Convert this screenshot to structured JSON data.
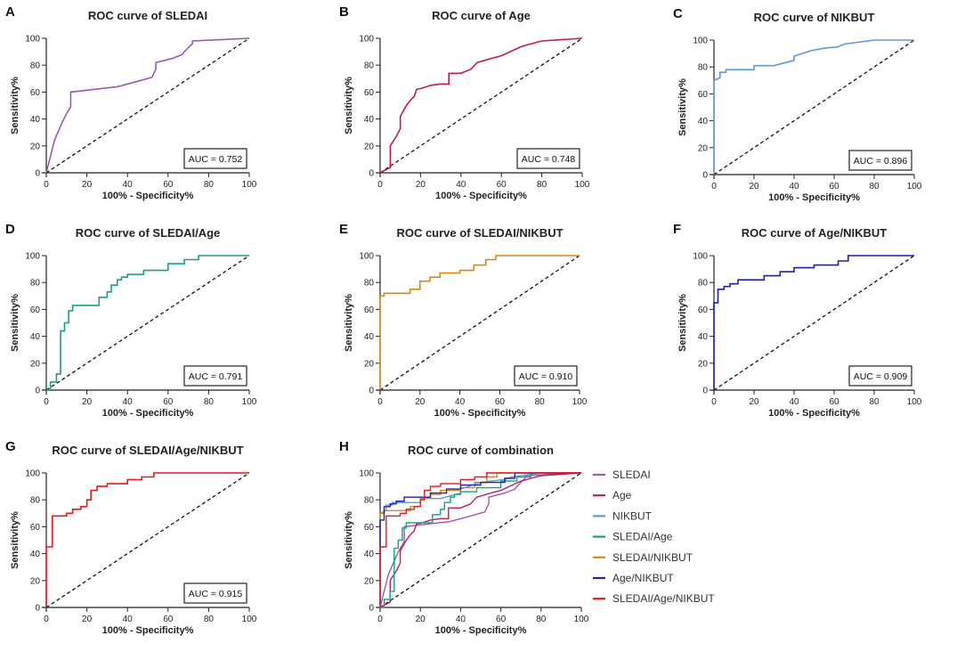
{
  "chart_data": [
    {
      "type": "line",
      "panel": "A",
      "title": "ROC curve of SLEDAI",
      "xlabel": "100% - Specificity%",
      "ylabel": "Sensitivity%",
      "xlim": [
        0,
        100
      ],
      "ylim": [
        0,
        100
      ],
      "xticks": [
        0,
        20,
        40,
        60,
        80,
        100
      ],
      "yticks": [
        0,
        20,
        40,
        60,
        80,
        100
      ],
      "color": "#9b59b6",
      "auc_label": "AUC = 0.752",
      "series": [
        {
          "name": "SLEDAI",
          "x": [
            0,
            4,
            8,
            10,
            12,
            12,
            35,
            45,
            52,
            54,
            54,
            62,
            67,
            68,
            72,
            72,
            100
          ],
          "y": [
            0,
            24,
            38,
            44,
            49,
            60,
            64,
            68,
            71,
            77,
            82,
            85,
            88,
            90,
            96,
            98,
            100
          ]
        }
      ],
      "reference_line": {
        "x": [
          0,
          100
        ],
        "y": [
          0,
          100
        ]
      }
    },
    {
      "type": "line",
      "panel": "B",
      "title": "ROC curve of Age",
      "xlabel": "100% - Specificity%",
      "ylabel": "Sensitivity%",
      "xlim": [
        0,
        100
      ],
      "ylim": [
        0,
        100
      ],
      "xticks": [
        0,
        20,
        40,
        60,
        80,
        100
      ],
      "yticks": [
        0,
        20,
        40,
        60,
        80,
        100
      ],
      "color": "#c2185b",
      "auc_label": "AUC = 0.748",
      "series": [
        {
          "name": "Age",
          "x": [
            0,
            5,
            5,
            8,
            10,
            10,
            13,
            15,
            17,
            18,
            21,
            25,
            30,
            34,
            34,
            40,
            45,
            48,
            55,
            60,
            70,
            80,
            100
          ],
          "y": [
            0,
            4,
            20,
            27,
            33,
            42,
            50,
            54,
            57,
            62,
            63,
            65,
            66,
            66,
            74,
            74,
            77,
            82,
            85,
            87,
            94,
            98,
            100
          ]
        }
      ],
      "reference_line": {
        "x": [
          0,
          100
        ],
        "y": [
          0,
          100
        ]
      }
    },
    {
      "type": "line",
      "panel": "C",
      "title": "ROC curve of NIKBUT",
      "xlabel": "100% - Specificity%",
      "ylabel": "Sensitivity%",
      "xlim": [
        0,
        100
      ],
      "ylim": [
        0,
        100
      ],
      "xticks": [
        0,
        20,
        40,
        60,
        80,
        100
      ],
      "yticks": [
        0,
        20,
        40,
        60,
        80,
        100
      ],
      "color": "#5b9bd5",
      "auc_label": "AUC = 0.896",
      "series": [
        {
          "name": "NIKBUT",
          "x": [
            0,
            0,
            3,
            3,
            6,
            6,
            20,
            20,
            30,
            35,
            40,
            40,
            48,
            55,
            62,
            65,
            80,
            100
          ],
          "y": [
            0,
            70,
            72,
            76,
            76,
            78,
            78,
            81,
            81,
            83,
            85,
            88,
            92,
            94,
            95,
            97,
            100,
            100
          ]
        }
      ],
      "reference_line": {
        "x": [
          0,
          100
        ],
        "y": [
          0,
          100
        ]
      }
    },
    {
      "type": "line",
      "panel": "D",
      "title": "ROC curve of SLEDAI/Age",
      "xlabel": "100% - Specificity%",
      "ylabel": "Sensitivity%",
      "xlim": [
        0,
        100
      ],
      "ylim": [
        0,
        100
      ],
      "xticks": [
        0,
        20,
        40,
        60,
        80,
        100
      ],
      "yticks": [
        0,
        20,
        40,
        60,
        80,
        100
      ],
      "color": "#16a085",
      "auc_label": "AUC = 0.791",
      "series": [
        {
          "name": "SLEDAI/Age",
          "x": [
            0,
            2,
            2,
            5,
            5,
            7,
            7,
            9,
            9,
            11,
            11,
            13,
            13,
            26,
            26,
            30,
            30,
            32,
            32,
            35,
            35,
            37,
            37,
            40,
            40,
            48,
            48,
            60,
            60,
            68,
            68,
            75,
            75,
            100
          ],
          "y": [
            0,
            0,
            6,
            6,
            12,
            12,
            44,
            44,
            50,
            50,
            59,
            59,
            63,
            63,
            69,
            69,
            73,
            73,
            78,
            78,
            82,
            82,
            84,
            84,
            86,
            86,
            89,
            89,
            94,
            94,
            97,
            97,
            100,
            100
          ]
        }
      ],
      "reference_line": {
        "x": [
          0,
          100
        ],
        "y": [
          0,
          100
        ]
      }
    },
    {
      "type": "line",
      "panel": "E",
      "title": "ROC curve of SLEDAI/NIKBUT",
      "xlabel": "100% - Specificity%",
      "ylabel": "Sensitivity%",
      "xlim": [
        0,
        100
      ],
      "ylim": [
        0,
        100
      ],
      "xticks": [
        0,
        20,
        40,
        60,
        80,
        100
      ],
      "yticks": [
        0,
        20,
        40,
        60,
        80,
        100
      ],
      "color": "#d68910",
      "auc_label": "AUC = 0.910",
      "series": [
        {
          "name": "SLEDAI/NIKBUT",
          "x": [
            0,
            0,
            2,
            2,
            15,
            15,
            20,
            20,
            25,
            25,
            30,
            30,
            40,
            40,
            47,
            47,
            53,
            53,
            58,
            58,
            100
          ],
          "y": [
            0,
            70,
            70,
            72,
            72,
            75,
            75,
            81,
            81,
            84,
            84,
            87,
            87,
            89,
            89,
            93,
            93,
            97,
            97,
            100,
            100
          ]
        }
      ],
      "reference_line": {
        "x": [
          0,
          100
        ],
        "y": [
          0,
          100
        ]
      }
    },
    {
      "type": "line",
      "panel": "F",
      "title": "ROC curve of Age/NIKBUT",
      "xlabel": "100% - Specificity%",
      "ylabel": "Sensitivity%",
      "xlim": [
        0,
        100
      ],
      "ylim": [
        0,
        100
      ],
      "xticks": [
        0,
        20,
        40,
        60,
        80,
        100
      ],
      "yticks": [
        0,
        20,
        40,
        60,
        80,
        100
      ],
      "color": "#1f1fb5",
      "auc_label": "AUC = 0.909",
      "series": [
        {
          "name": "Age/NIKBUT",
          "x": [
            0,
            0,
            2,
            2,
            5,
            5,
            8,
            8,
            12,
            12,
            25,
            25,
            33,
            33,
            40,
            40,
            50,
            50,
            62,
            62,
            67,
            67,
            100
          ],
          "y": [
            0,
            65,
            65,
            75,
            75,
            77,
            77,
            79,
            79,
            82,
            82,
            85,
            85,
            88,
            88,
            91,
            91,
            93,
            93,
            96,
            96,
            100,
            100
          ]
        }
      ],
      "reference_line": {
        "x": [
          0,
          100
        ],
        "y": [
          0,
          100
        ]
      }
    },
    {
      "type": "line",
      "panel": "G",
      "title": "ROC curve of SLEDAI/Age/NIKBUT",
      "xlabel": "100% - Specificity%",
      "ylabel": "Sensitivity%",
      "xlim": [
        0,
        100
      ],
      "ylim": [
        0,
        100
      ],
      "xticks": [
        0,
        20,
        40,
        60,
        80,
        100
      ],
      "yticks": [
        0,
        20,
        40,
        60,
        80,
        100
      ],
      "color": "#e41a1c",
      "auc_label": "AUC = 0.915",
      "series": [
        {
          "name": "SLEDAI/Age/NIKBUT",
          "x": [
            0,
            0,
            3,
            3,
            10,
            10,
            13,
            13,
            17,
            17,
            20,
            20,
            22,
            22,
            25,
            25,
            30,
            30,
            40,
            40,
            47,
            47,
            53,
            53,
            100
          ],
          "y": [
            0,
            45,
            45,
            68,
            68,
            70,
            70,
            73,
            73,
            75,
            75,
            80,
            80,
            87,
            87,
            90,
            90,
            92,
            92,
            95,
            95,
            97,
            97,
            100,
            100
          ]
        }
      ],
      "reference_line": {
        "x": [
          0,
          100
        ],
        "y": [
          0,
          100
        ]
      }
    },
    {
      "type": "line",
      "panel": "H",
      "title": "ROC curve of combination",
      "xlabel": "100% - Specificity%",
      "ylabel": "Sensitivity%",
      "xlim": [
        0,
        100
      ],
      "ylim": [
        0,
        100
      ],
      "xticks": [
        0,
        20,
        40,
        60,
        80,
        100
      ],
      "yticks": [
        0,
        20,
        40,
        60,
        80,
        100
      ],
      "legend_position": "right",
      "series": [
        {
          "name": "SLEDAI",
          "color": "#9b59b6",
          "x": [
            0,
            4,
            8,
            10,
            12,
            12,
            35,
            45,
            52,
            54,
            54,
            62,
            67,
            68,
            72,
            72,
            100
          ],
          "y": [
            0,
            24,
            38,
            44,
            49,
            60,
            64,
            68,
            71,
            77,
            82,
            85,
            88,
            90,
            96,
            98,
            100
          ]
        },
        {
          "name": "Age",
          "color": "#c2185b",
          "x": [
            0,
            5,
            5,
            8,
            10,
            10,
            13,
            15,
            17,
            18,
            21,
            25,
            30,
            34,
            34,
            40,
            45,
            48,
            55,
            60,
            70,
            80,
            100
          ],
          "y": [
            0,
            4,
            20,
            27,
            33,
            42,
            50,
            54,
            57,
            62,
            63,
            65,
            66,
            66,
            74,
            74,
            77,
            82,
            85,
            87,
            94,
            98,
            100
          ]
        },
        {
          "name": "NIKBUT",
          "color": "#5b9bd5",
          "x": [
            0,
            0,
            3,
            3,
            6,
            6,
            20,
            20,
            30,
            35,
            40,
            40,
            48,
            55,
            62,
            65,
            80,
            100
          ],
          "y": [
            0,
            70,
            72,
            76,
            76,
            78,
            78,
            81,
            81,
            83,
            85,
            88,
            92,
            94,
            95,
            97,
            100,
            100
          ]
        },
        {
          "name": "SLEDAI/Age",
          "color": "#16a085",
          "x": [
            0,
            2,
            2,
            5,
            5,
            7,
            7,
            9,
            9,
            11,
            11,
            13,
            13,
            26,
            26,
            30,
            30,
            32,
            32,
            35,
            35,
            37,
            37,
            40,
            40,
            48,
            48,
            60,
            60,
            68,
            68,
            75,
            75,
            100
          ],
          "y": [
            0,
            0,
            6,
            6,
            12,
            12,
            44,
            44,
            50,
            50,
            59,
            59,
            63,
            63,
            69,
            69,
            73,
            73,
            78,
            78,
            82,
            82,
            84,
            84,
            86,
            86,
            89,
            89,
            94,
            94,
            97,
            97,
            100,
            100
          ]
        },
        {
          "name": "SLEDAI/NIKBUT",
          "color": "#d68910",
          "x": [
            0,
            0,
            2,
            2,
            15,
            15,
            20,
            20,
            25,
            25,
            30,
            30,
            40,
            40,
            47,
            47,
            53,
            53,
            58,
            58,
            100
          ],
          "y": [
            0,
            70,
            70,
            72,
            72,
            75,
            75,
            81,
            81,
            84,
            84,
            87,
            87,
            89,
            89,
            93,
            93,
            97,
            97,
            100,
            100
          ]
        },
        {
          "name": "Age/NIKBUT",
          "color": "#1f1fb5",
          "x": [
            0,
            0,
            2,
            2,
            5,
            5,
            8,
            8,
            12,
            12,
            25,
            25,
            33,
            33,
            40,
            40,
            50,
            50,
            62,
            62,
            67,
            67,
            100
          ],
          "y": [
            0,
            65,
            65,
            75,
            75,
            77,
            77,
            79,
            79,
            82,
            82,
            85,
            85,
            88,
            88,
            91,
            91,
            93,
            93,
            96,
            96,
            100,
            100
          ]
        },
        {
          "name": "SLEDAI/Age/NIKBUT",
          "color": "#e41a1c",
          "x": [
            0,
            0,
            3,
            3,
            10,
            10,
            13,
            13,
            17,
            17,
            20,
            20,
            22,
            22,
            25,
            25,
            30,
            30,
            40,
            40,
            47,
            47,
            53,
            53,
            100
          ],
          "y": [
            0,
            45,
            45,
            68,
            68,
            70,
            70,
            73,
            73,
            75,
            75,
            80,
            80,
            87,
            87,
            90,
            90,
            92,
            92,
            95,
            95,
            97,
            97,
            100,
            100
          ]
        }
      ],
      "reference_line": {
        "x": [
          0,
          100
        ],
        "y": [
          0,
          100
        ]
      }
    }
  ]
}
